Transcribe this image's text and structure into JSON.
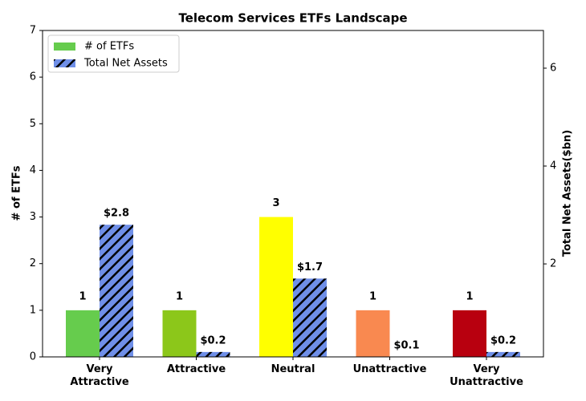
{
  "chart_data": {
    "type": "bar",
    "title": "Telecom Services ETFs Landscape",
    "categories": [
      "Very\nAttractive",
      "Attractive",
      "Neutral",
      "Unattractive",
      "Very\nUnattractive"
    ],
    "series": [
      {
        "name": "# of ETFs",
        "colors": [
          "#66cc4d",
          "#8cc71a",
          "#ffff00",
          "#f98950",
          "#b8000f"
        ],
        "values": [
          1,
          1,
          3,
          1,
          1
        ]
      },
      {
        "name": "Total Net Assets",
        "color": "#6f8fe8",
        "hatch": "//",
        "axis": "y2",
        "values": [
          2.8,
          0.2,
          1.7,
          0.1,
          0.2
        ],
        "value_labels": [
          "$2.8",
          "$0.2",
          "$1.7",
          "$0.1",
          "$0.2"
        ]
      }
    ],
    "ylabel": "# of ETFs",
    "y2label": "Total Net Assets($bn)",
    "ylim": [
      0,
      7
    ],
    "yticks": [
      0,
      1,
      2,
      3,
      4,
      5,
      6,
      7
    ],
    "y2lim": [
      0.1,
      6.77
    ],
    "y2ticks": [
      2,
      4,
      6
    ],
    "legend": "upper-left"
  }
}
